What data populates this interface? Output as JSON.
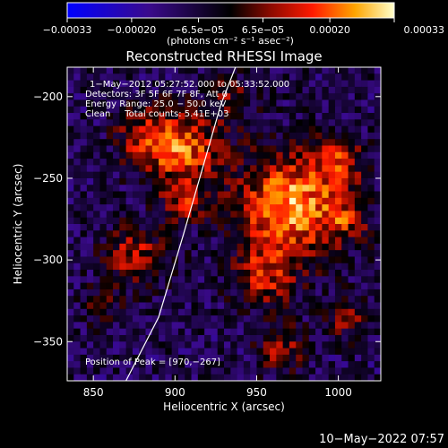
{
  "chart_data": {
    "type": "heatmap",
    "title": "Reconstructed RHESSI Image",
    "xlabel": "Heliocentric X (arcsec)",
    "ylabel": "Heliocentric Y (arcsec)",
    "xlim": [
      834,
      1026
    ],
    "ylim": [
      -374,
      -182
    ],
    "x_ticks": [
      850,
      900,
      950,
      1000
    ],
    "y_ticks": [
      -200,
      -250,
      -300,
      -350
    ],
    "x_tick_labels": [
      "850",
      "900",
      "950",
      "1000"
    ],
    "y_tick_labels": [
      "−200",
      "−250",
      "−300",
      "−350"
    ],
    "colorbar": {
      "min": -0.00033,
      "max": 0.00033,
      "ticks": [
        -0.00033,
        -0.0002,
        -6.5e-05,
        6.5e-05,
        0.0002,
        0.00033
      ],
      "tick_labels": [
        "−0.00033",
        "−0.00020",
        "−6.5e−05",
        "6.5e−05",
        "0.00020",
        "0.00033"
      ],
      "unit_label": "(photons cm⁻² s⁻¹ asec⁻²)"
    },
    "annotations": [
      "1−May−2012 05:27:52.000 to 05:33:52.000",
      "Detectors: 3F 5F 6F 7F 8F, Att 0",
      "Energy Range: 25.0 − 50.0 keV",
      "Clean     Total counts: 5.41E+03",
      "Position of Peak = [970,−267]"
    ],
    "sources": [
      {
        "x": 970,
        "y": -267,
        "amplitude": 1.0,
        "sigma": 22
      },
      {
        "x": 905,
        "y": -232,
        "amplitude": 0.8,
        "sigma": 17
      },
      {
        "x": 880,
        "y": -225,
        "amplitude": 0.45,
        "sigma": 12
      },
      {
        "x": 875,
        "y": -297,
        "amplitude": 0.55,
        "sigma": 13
      },
      {
        "x": 905,
        "y": -265,
        "amplitude": 0.5,
        "sigma": 9
      },
      {
        "x": 955,
        "y": -310,
        "amplitude": 0.55,
        "sigma": 14
      },
      {
        "x": 965,
        "y": -355,
        "amplitude": 0.5,
        "sigma": 10
      },
      {
        "x": 1000,
        "y": -240,
        "amplitude": 0.55,
        "sigma": 11
      },
      {
        "x": 1005,
        "y": -275,
        "amplitude": 0.45,
        "sigma": 10
      },
      {
        "x": 1005,
        "y": -335,
        "amplitude": 0.45,
        "sigma": 9
      },
      {
        "x": 935,
        "y": -200,
        "amplitude": 0.35,
        "sigma": 10
      },
      {
        "x": 855,
        "y": -330,
        "amplitude": 0.3,
        "sigma": 9
      }
    ],
    "limb_line": [
      [
        870,
        -374
      ],
      [
        890,
        -335
      ],
      [
        905,
        -285
      ],
      [
        918,
        -240
      ],
      [
        928,
        -205
      ],
      [
        937,
        -182
      ]
    ],
    "grid": false
  },
  "footer": {
    "timestamp": "10−May−2022 07:57"
  },
  "colors": {
    "background": "#000000",
    "foreground": "#ffffff"
  }
}
